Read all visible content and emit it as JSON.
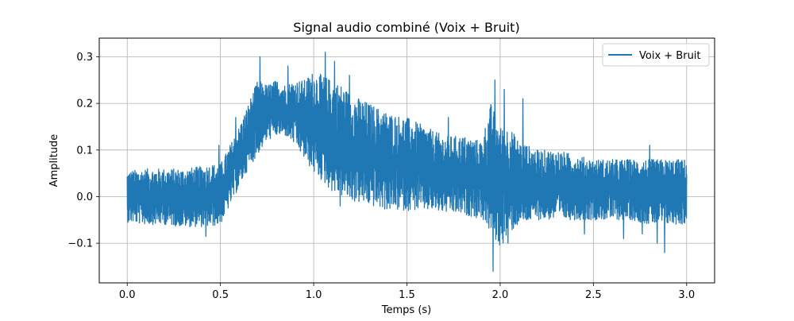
{
  "chart_data": {
    "type": "line",
    "title": "Signal audio combiné (Voix + Bruit)",
    "xlabel": "Temps (s)",
    "ylabel": "Amplitude",
    "xlim": [
      -0.15,
      3.15
    ],
    "ylim": [
      -0.185,
      0.34
    ],
    "xticks": [
      0.0,
      0.5,
      1.0,
      1.5,
      2.0,
      2.5,
      3.0
    ],
    "xtick_labels": [
      "0.0",
      "0.5",
      "1.0",
      "1.5",
      "2.0",
      "2.5",
      "3.0"
    ],
    "yticks": [
      -0.1,
      0.0,
      0.1,
      0.2,
      0.3
    ],
    "ytick_labels": [
      "−0.1",
      "0.0",
      "0.1",
      "0.2",
      "0.3"
    ],
    "grid": true,
    "legend": {
      "position": "top-right"
    },
    "series": [
      {
        "name": "Voix + Bruit",
        "color": "#1f77b4",
        "x": [
          0.0,
          0.1,
          0.2,
          0.3,
          0.4,
          0.45,
          0.5,
          0.55,
          0.6,
          0.65,
          0.7,
          0.75,
          0.8,
          0.85,
          0.9,
          0.95,
          1.0,
          1.05,
          1.1,
          1.15,
          1.2,
          1.3,
          1.4,
          1.5,
          1.6,
          1.7,
          1.8,
          1.9,
          1.95,
          2.0,
          2.05,
          2.1,
          2.2,
          2.3,
          2.4,
          2.5,
          2.6,
          2.7,
          2.8,
          2.9,
          3.0
        ],
        "lower": [
          -0.055,
          -0.06,
          -0.06,
          -0.065,
          -0.065,
          -0.065,
          -0.06,
          -0.02,
          0.02,
          0.06,
          0.09,
          0.12,
          0.13,
          0.13,
          0.11,
          0.08,
          0.05,
          0.03,
          0.01,
          0.0,
          -0.01,
          -0.02,
          -0.03,
          -0.03,
          -0.03,
          -0.035,
          -0.04,
          -0.045,
          -0.08,
          -0.11,
          -0.08,
          -0.06,
          -0.05,
          -0.05,
          -0.05,
          -0.05,
          -0.05,
          -0.05,
          -0.06,
          -0.06,
          -0.06
        ],
        "upper": [
          0.055,
          0.06,
          0.06,
          0.06,
          0.065,
          0.07,
          0.07,
          0.11,
          0.15,
          0.2,
          0.25,
          0.24,
          0.25,
          0.24,
          0.25,
          0.25,
          0.27,
          0.26,
          0.25,
          0.24,
          0.22,
          0.2,
          0.18,
          0.17,
          0.15,
          0.13,
          0.13,
          0.12,
          0.2,
          0.15,
          0.15,
          0.12,
          0.1,
          0.1,
          0.09,
          0.08,
          0.08,
          0.08,
          0.08,
          0.08,
          0.08
        ],
        "peaks": [
          {
            "x": 0.42,
            "y": -0.085
          },
          {
            "x": 0.49,
            "y": 0.11
          },
          {
            "x": 0.58,
            "y": 0.17
          },
          {
            "x": 0.71,
            "y": 0.3
          },
          {
            "x": 0.86,
            "y": 0.28
          },
          {
            "x": 1.06,
            "y": 0.31
          },
          {
            "x": 1.11,
            "y": 0.29
          },
          {
            "x": 1.14,
            "y": -0.02
          },
          {
            "x": 1.19,
            "y": 0.26
          },
          {
            "x": 1.72,
            "y": 0.17
          },
          {
            "x": 1.87,
            "y": -0.045
          },
          {
            "x": 1.97,
            "y": 0.25
          },
          {
            "x": 1.96,
            "y": -0.16
          },
          {
            "x": 2.02,
            "y": 0.23
          },
          {
            "x": 2.04,
            "y": -0.1
          },
          {
            "x": 2.12,
            "y": 0.21
          },
          {
            "x": 2.45,
            "y": -0.08
          },
          {
            "x": 2.66,
            "y": -0.09
          },
          {
            "x": 2.76,
            "y": -0.08
          },
          {
            "x": 2.8,
            "y": 0.11
          },
          {
            "x": 2.84,
            "y": -0.1
          },
          {
            "x": 2.88,
            "y": -0.12
          }
        ]
      }
    ]
  }
}
